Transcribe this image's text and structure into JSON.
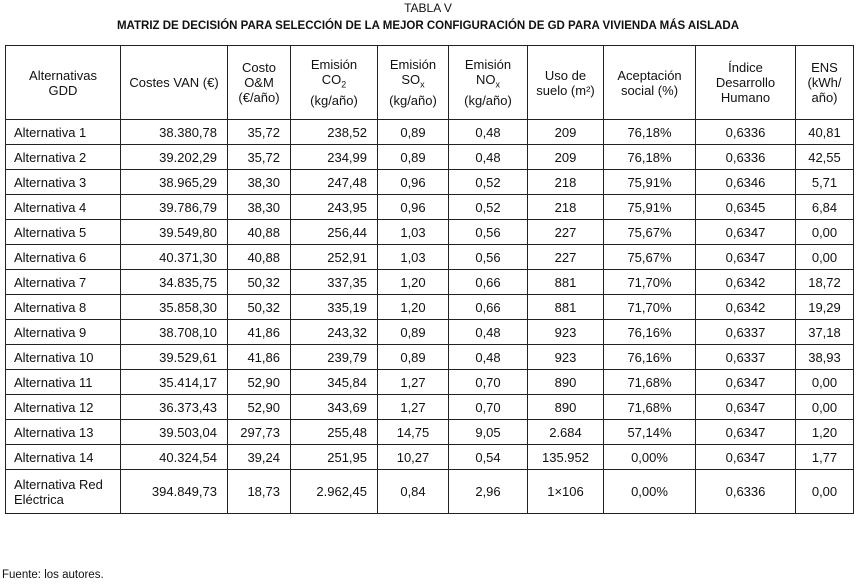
{
  "caption": {
    "label": "TABLA V",
    "title": "MATRIZ DE DECISIÓN PARA SELECCIÓN DE LA MEJOR CONFIGURACIÓN DE GD PARA VIVIENDA MÁS AISLADA"
  },
  "table": {
    "header": [
      [
        "Alternativas",
        "GDD"
      ],
      [
        "Costes VAN (€)"
      ],
      [
        "Costo",
        "O&M",
        "(€/año)"
      ],
      [
        "Emisión",
        [
          "CO",
          "2"
        ],
        "(kg/año)"
      ],
      [
        "Emisión",
        [
          "SO",
          "x"
        ],
        "(kg/año)"
      ],
      [
        "Emisión",
        [
          "NO",
          "x"
        ],
        "(kg/año)"
      ],
      [
        "Uso de",
        "suelo (m²)"
      ],
      [
        "Aceptación",
        "social (%)"
      ],
      [
        "Índice",
        "Desarrollo",
        "Humano"
      ],
      [
        "ENS",
        "(kWh/",
        "año)"
      ]
    ],
    "rows": [
      [
        "Alternativa 1",
        "38.380,78",
        "35,72",
        "238,52",
        "0,89",
        "0,48",
        "209",
        "76,18%",
        "0,6336",
        "40,81"
      ],
      [
        "Alternativa 2",
        "39.202,29",
        "35,72",
        "234,99",
        "0,89",
        "0,48",
        "209",
        "76,18%",
        "0,6336",
        "42,55"
      ],
      [
        "Alternativa 3",
        "38.965,29",
        "38,30",
        "247,48",
        "0,96",
        "0,52",
        "218",
        "75,91%",
        "0,6346",
        "5,71"
      ],
      [
        "Alternativa 4",
        "39.786,79",
        "38,30",
        "243,95",
        "0,96",
        "0,52",
        "218",
        "75,91%",
        "0,6345",
        "6,84"
      ],
      [
        "Alternativa 5",
        "39.549,80",
        "40,88",
        "256,44",
        "1,03",
        "0,56",
        "227",
        "75,67%",
        "0,6347",
        "0,00"
      ],
      [
        "Alternativa 6",
        "40.371,30",
        "40,88",
        "252,91",
        "1,03",
        "0,56",
        "227",
        "75,67%",
        "0,6347",
        "0,00"
      ],
      [
        "Alternativa 7",
        "34.835,75",
        "50,32",
        "337,35",
        "1,20",
        "0,66",
        "881",
        "71,70%",
        "0,6342",
        "18,72"
      ],
      [
        "Alternativa 8",
        "35.858,30",
        "50,32",
        "335,19",
        "1,20",
        "0,66",
        "881",
        "71,70%",
        "0,6342",
        "19,29"
      ],
      [
        "Alternativa 9",
        "38.708,10",
        "41,86",
        "243,32",
        "0,89",
        "0,48",
        "923",
        "76,16%",
        "0,6337",
        "37,18"
      ],
      [
        "Alternativa 10",
        "39.529,61",
        "41,86",
        "239,79",
        "0,89",
        "0,48",
        "923",
        "76,16%",
        "0,6337",
        "38,93"
      ],
      [
        "Alternativa 11",
        "35.414,17",
        "52,90",
        "345,84",
        "1,27",
        "0,70",
        "890",
        "71,68%",
        "0,6347",
        "0,00"
      ],
      [
        "Alternativa 12",
        "36.373,43",
        "52,90",
        "343,69",
        "1,27",
        "0,70",
        "890",
        "71,68%",
        "0,6347",
        "0,00"
      ],
      [
        "Alternativa 13",
        "39.503,04",
        "297,73",
        "255,48",
        "14,75",
        "9,05",
        "2.684",
        "57,14%",
        "0,6347",
        "1,20"
      ],
      [
        "Alternativa 14",
        "40.324,54",
        "39,24",
        "251,95",
        "10,27",
        "0,54",
        "135.952",
        "0,00%",
        "0,6347",
        "1,77"
      ],
      [
        "Alternativa Red Eléctrica",
        "394.849,73",
        "18,73",
        "2.962,45",
        "0,84",
        "2,96",
        "1×106",
        "0,00%",
        "0,6336",
        "0,00"
      ]
    ]
  },
  "footer": {
    "source": "Fuente: los autores."
  }
}
